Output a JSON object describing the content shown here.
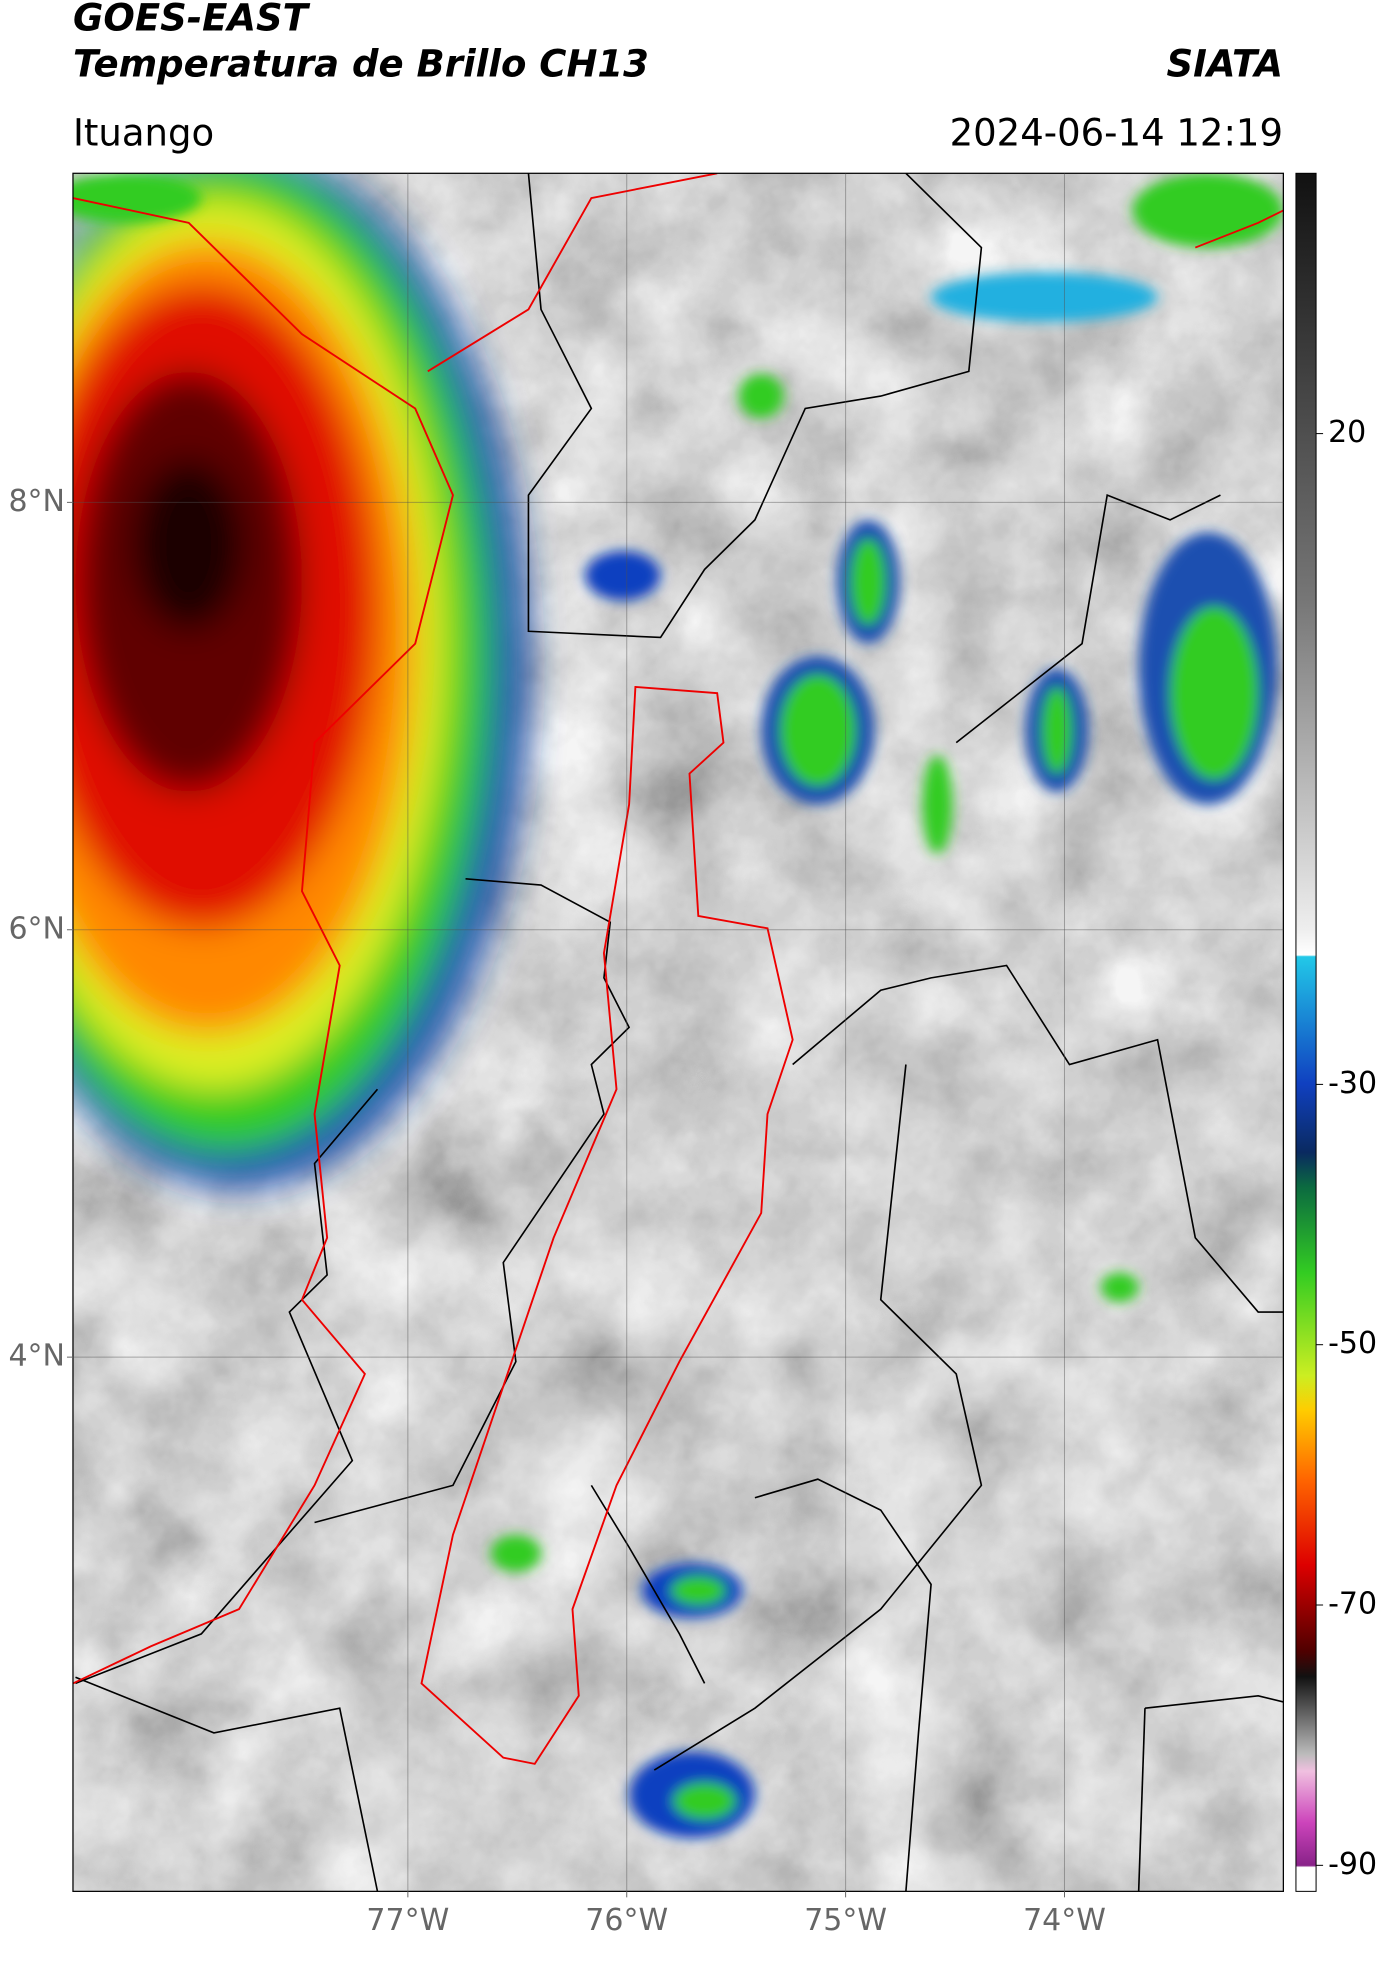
{
  "header": {
    "title_lines": [
      "GOES-EAST",
      "Temperatura de Brillo CH13"
    ],
    "brand": "SIATA",
    "location": "Ituango",
    "datetime": "2024-06-14 12:19"
  },
  "map": {
    "xlim": [
      -78.53,
      -73.0
    ],
    "ylim": [
      1.5,
      9.54
    ],
    "xticks": [
      {
        "value": -77,
        "label": "77°W"
      },
      {
        "value": -76,
        "label": "76°W"
      },
      {
        "value": -75,
        "label": "75°W"
      },
      {
        "value": -74,
        "label": "74°W"
      }
    ],
    "yticks": [
      {
        "value": 8,
        "label": "8°N"
      },
      {
        "value": 6,
        "label": "6°N"
      },
      {
        "value": 4,
        "label": "4°N"
      }
    ]
  },
  "colorbar": {
    "range": [
      -92,
      40
    ],
    "ticks": [
      20,
      -30,
      -50,
      -70,
      -90
    ]
  }
}
